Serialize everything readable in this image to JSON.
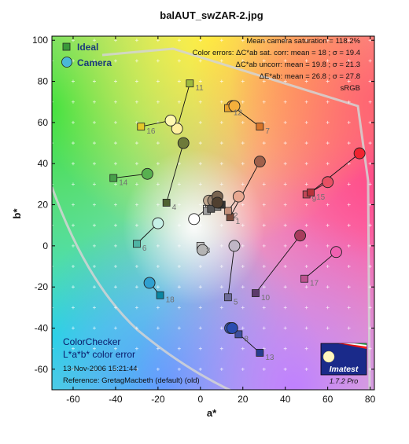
{
  "chart_data": {
    "type": "scatter",
    "title": "balAUT_swZAR-2.jpg",
    "xlabel": "a*",
    "ylabel": "b*",
    "xlim": [
      -70,
      82
    ],
    "ylim": [
      -70,
      102
    ],
    "x_ticks": [
      -60,
      -40,
      -20,
      0,
      20,
      40,
      60,
      80
    ],
    "y_ticks": [
      -60,
      -40,
      -20,
      0,
      20,
      40,
      60,
      80,
      100
    ],
    "grid": "dotted white crosses",
    "legend": {
      "position": "top-left",
      "entries": [
        {
          "label": "Ideal",
          "marker": "square"
        },
        {
          "label": "Camera",
          "marker": "circle"
        }
      ]
    },
    "stats_lines": [
      "Mean camera saturation = 118.2%",
      "Color errors:  ΔC*ab sat. corr:  mean = 18 ;  σ = 19.4",
      "ΔC*ab uncorr:  mean = 19.8 ;  σ = 21.3",
      "ΔE*ab:  mean = 26.8 ;  σ = 27.8",
      "sRGB"
    ],
    "bottom_left": {
      "line1": "ColorChecker",
      "line2": "L*a*b* color error",
      "timestamp": "13-Nov-2006 15:21:44",
      "reference": "Reference: GretagMacbeth (default) (old)"
    },
    "logo": {
      "name": "Imatest",
      "version": "1.7.2  Pro"
    },
    "patches": [
      {
        "id": "1",
        "label": "1",
        "ideal": [
          14,
          14
        ],
        "camera": [
          28,
          41
        ],
        "ideal_color": "#7a4a3a",
        "camera_color": "#a0604a"
      },
      {
        "id": "2",
        "label": "2",
        "ideal": [
          13,
          17
        ],
        "camera": [
          18,
          24
        ],
        "ideal_color": "#c48f7a",
        "camera_color": "#e8a891"
      },
      {
        "id": "3",
        "label": "3",
        "ideal": [
          0,
          0
        ],
        "camera": [
          1,
          -2
        ],
        "ideal_color": "#c8c8c8",
        "camera_color": "#b4b4b4"
      },
      {
        "id": "4",
        "label": "4",
        "ideal": [
          -16,
          21
        ],
        "camera": [
          -8,
          50
        ],
        "ideal_color": "#4f6231",
        "camera_color": "#6e7a3a"
      },
      {
        "id": "5",
        "label": "5",
        "ideal": [
          13,
          -25
        ],
        "camera": [
          16,
          0
        ],
        "ideal_color": "#6d6b9a",
        "camera_color": "#c0b6c6"
      },
      {
        "id": "6",
        "label": "6",
        "ideal": [
          -30,
          1
        ],
        "camera": [
          -20,
          11
        ],
        "ideal_color": "#4fb4a4",
        "camera_color": "#c6f0e6"
      },
      {
        "id": "7",
        "label": "7",
        "ideal": [
          28,
          58
        ],
        "camera": [
          15,
          68
        ],
        "ideal_color": "#d9762a",
        "camera_color": "#f8a040"
      },
      {
        "id": "8",
        "label": "8",
        "ideal": [
          18,
          -43
        ],
        "camera": [
          14,
          -40
        ],
        "ideal_color": "#3f4f9e",
        "camera_color": "#3c5ab4"
      },
      {
        "id": "9",
        "label": "9",
        "ideal": [
          50,
          25
        ],
        "camera": [
          60,
          31
        ],
        "ideal_color": "#c24656",
        "camera_color": "#e85064"
      },
      {
        "id": "10",
        "label": "10",
        "ideal": [
          26,
          -23
        ],
        "camera": [
          47,
          5
        ],
        "ideal_color": "#5c3a6a",
        "camera_color": "#a83c5c"
      },
      {
        "id": "11",
        "label": "11",
        "ideal": [
          -5,
          79
        ],
        "camera": [
          -11,
          57
        ],
        "ideal_color": "#9dba3e",
        "camera_color": "#fff0a0"
      },
      {
        "id": "12",
        "label": "12",
        "ideal": [
          13,
          67
        ],
        "camera": [
          16,
          68
        ],
        "ideal_color": "#e8a22e",
        "camera_color": "#f4b03c"
      },
      {
        "id": "13",
        "label": "13",
        "ideal": [
          28,
          -52
        ],
        "camera": [
          15,
          -40
        ],
        "ideal_color": "#263c8f",
        "camera_color": "#2a4cb0"
      },
      {
        "id": "14",
        "label": "14",
        "ideal": [
          -41,
          33
        ],
        "camera": [
          -25,
          35
        ],
        "ideal_color": "#47a04a",
        "camera_color": "#58b050"
      },
      {
        "id": "15",
        "label": "15",
        "ideal": [
          52,
          26
        ],
        "camera": [
          75,
          45
        ],
        "ideal_color": "#b5323a",
        "camera_color": "#f02430"
      },
      {
        "id": "16",
        "label": "16",
        "ideal": [
          -28,
          58
        ],
        "camera": [
          -14,
          61
        ],
        "ideal_color": "#e4c82a",
        "camera_color": "#fff8b0"
      },
      {
        "id": "17",
        "label": "17",
        "ideal": [
          49,
          -16
        ],
        "camera": [
          64,
          -3
        ],
        "ideal_color": "#bd5390",
        "camera_color": "#f060b0"
      },
      {
        "id": "18",
        "label": "18",
        "ideal": [
          -19,
          -24
        ],
        "camera": [
          -24,
          -18
        ],
        "ideal_color": "#0a86a2",
        "camera_color": "#30a0d0"
      },
      {
        "id": "19",
        "label": "",
        "ideal": [
          3,
          18
        ],
        "camera": [
          -3,
          13
        ],
        "ideal_color": "#f2f2f2",
        "camera_color": "#ffffff"
      },
      {
        "id": "20",
        "label": "",
        "ideal": [
          7,
          20
        ],
        "camera": [
          5,
          20
        ],
        "ideal_color": "#c8c8c8",
        "camera_color": "#f4e6d0"
      },
      {
        "id": "21",
        "label": "",
        "ideal": [
          3,
          17
        ],
        "camera": [
          4,
          22
        ],
        "ideal_color": "#a0a0a0",
        "camera_color": "#c0a890"
      },
      {
        "id": "22",
        "label": "",
        "ideal": [
          8,
          19
        ],
        "camera": [
          6,
          22
        ],
        "ideal_color": "#7a7a7a",
        "camera_color": "#9a8470"
      },
      {
        "id": "23",
        "label": "",
        "ideal": [
          5,
          18
        ],
        "camera": [
          8,
          24
        ],
        "ideal_color": "#555555",
        "camera_color": "#786450"
      },
      {
        "id": "24",
        "label": "",
        "ideal": [
          10,
          20
        ],
        "camera": [
          8,
          21
        ],
        "ideal_color": "#343434",
        "camera_color": "#504030"
      }
    ]
  }
}
